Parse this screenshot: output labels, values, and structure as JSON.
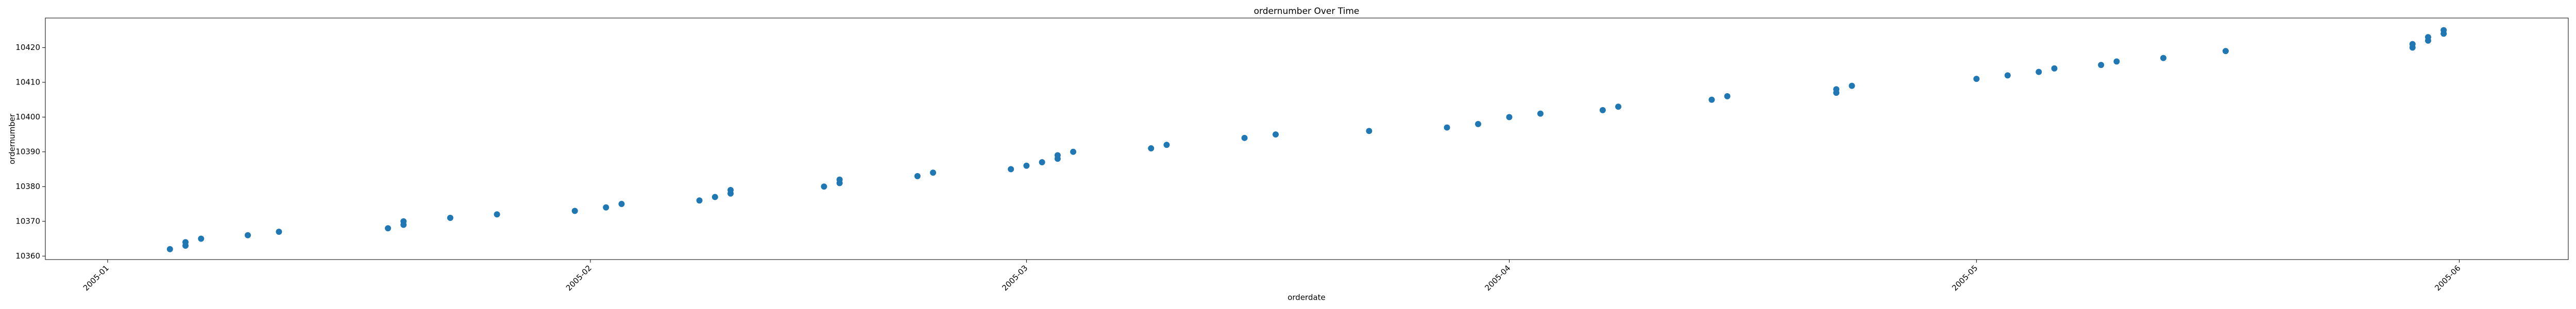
{
  "chart_data": {
    "type": "scatter",
    "title": "ordernumber Over Time",
    "x_label": "orderdate",
    "y_label": "ordernumber",
    "x": [
      "2005-01-05",
      "2005-01-06",
      "2005-01-06",
      "2005-01-07",
      "2005-01-10",
      "2005-01-12",
      "2005-01-19",
      "2005-01-20",
      "2005-01-20",
      "2005-01-23",
      "2005-01-26",
      "2005-01-31",
      "2005-02-02",
      "2005-02-03",
      "2005-02-08",
      "2005-02-09",
      "2005-02-10",
      "2005-02-10",
      "2005-02-16",
      "2005-02-17",
      "2005-02-17",
      "2005-02-22",
      "2005-02-23",
      "2005-02-28",
      "2005-03-01",
      "2005-03-02",
      "2005-03-03",
      "2005-03-03",
      "2005-03-04",
      "2005-03-09",
      "2005-03-10",
      "2005-03-15",
      "2005-03-17",
      "2005-03-23",
      "2005-03-28",
      "2005-03-30",
      "2005-04-01",
      "2005-04-03",
      "2005-04-07",
      "2005-04-08",
      "2005-04-14",
      "2005-04-15",
      "2005-04-22",
      "2005-04-22",
      "2005-04-23",
      "2005-05-01",
      "2005-05-03",
      "2005-05-05",
      "2005-05-06",
      "2005-05-09",
      "2005-05-10",
      "2005-05-13",
      "2005-05-17",
      "2005-05-29",
      "2005-05-29",
      "2005-05-30",
      "2005-05-30",
      "2005-05-31",
      "2005-05-31"
    ],
    "values": [
      10362,
      10363,
      10364,
      10365,
      10366,
      10367,
      10368,
      10369,
      10370,
      10371,
      10372,
      10373,
      10374,
      10375,
      10376,
      10377,
      10378,
      10379,
      10380,
      10381,
      10382,
      10383,
      10384,
      10385,
      10386,
      10387,
      10388,
      10389,
      10390,
      10391,
      10392,
      10394,
      10395,
      10396,
      10397,
      10398,
      10400,
      10401,
      10402,
      10403,
      10405,
      10406,
      10407,
      10408,
      10409,
      10411,
      10412,
      10413,
      10414,
      10415,
      10416,
      10417,
      10419,
      10420,
      10421,
      10422,
      10423,
      10424,
      10425
    ],
    "color": "#1f77b4",
    "xlim": [
      "2004-12-28",
      "2005-06-08"
    ],
    "xticks": [
      {
        "value": "2005-01-01",
        "label": "2005-01"
      },
      {
        "value": "2005-02-01",
        "label": "2005-02"
      },
      {
        "value": "2005-03-01",
        "label": "2005-03"
      },
      {
        "value": "2005-04-01",
        "label": "2005-04"
      },
      {
        "value": "2005-05-01",
        "label": "2005-05"
      },
      {
        "value": "2005-06-01",
        "label": "2005-06"
      }
    ],
    "ylim": [
      10359,
      10428.5
    ],
    "yticks": [
      10360,
      10370,
      10380,
      10390,
      10400,
      10410,
      10420
    ],
    "grid": false
  }
}
